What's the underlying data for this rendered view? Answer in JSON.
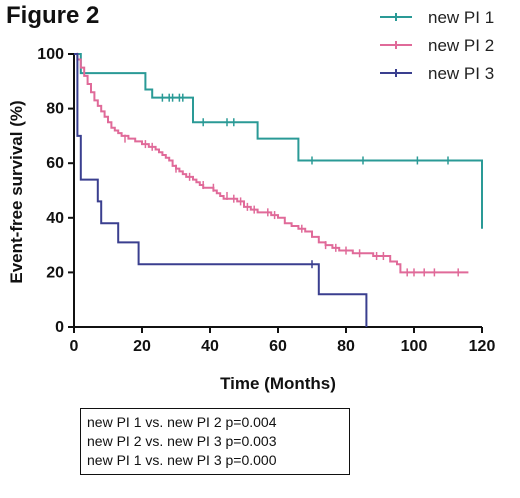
{
  "figure_title": "Figure 2",
  "chart_data": {
    "type": "line",
    "subtype": "kaplan-meier",
    "xlabel": "Time (Months)",
    "ylabel": "Event-free survival (%)",
    "xlim": [
      0,
      120
    ],
    "ylim": [
      0,
      100
    ],
    "xticks": [
      0,
      20,
      40,
      60,
      80,
      100,
      120
    ],
    "yticks": [
      0,
      20,
      40,
      60,
      80,
      100
    ],
    "grid": false,
    "legend_position": "top-right",
    "series": [
      {
        "name": "new PI 1",
        "color": "#2a9a96",
        "steps": [
          [
            0,
            100
          ],
          [
            2,
            93
          ],
          [
            19,
            93
          ],
          [
            21,
            87
          ],
          [
            23,
            84
          ],
          [
            33,
            84
          ],
          [
            35,
            75
          ],
          [
            52,
            75
          ],
          [
            54,
            69
          ],
          [
            65,
            69
          ],
          [
            66,
            61
          ],
          [
            120,
            61
          ],
          [
            120,
            36
          ]
        ],
        "censored": [
          [
            26,
            84
          ],
          [
            28,
            84
          ],
          [
            29,
            84
          ],
          [
            31,
            84
          ],
          [
            32,
            84
          ],
          [
            38,
            75
          ],
          [
            45,
            75
          ],
          [
            47,
            75
          ],
          [
            70,
            61
          ],
          [
            85,
            61
          ],
          [
            101,
            61
          ],
          [
            110,
            61
          ]
        ]
      },
      {
        "name": "new PI 2",
        "color": "#e06a99",
        "steps": [
          [
            0,
            100
          ],
          [
            1,
            98
          ],
          [
            2,
            95
          ],
          [
            3,
            92
          ],
          [
            4,
            89
          ],
          [
            5,
            86
          ],
          [
            6,
            83
          ],
          [
            7,
            81
          ],
          [
            8,
            79
          ],
          [
            9,
            77
          ],
          [
            10,
            75
          ],
          [
            11,
            73
          ],
          [
            12,
            72
          ],
          [
            13,
            71
          ],
          [
            14,
            70
          ],
          [
            16,
            69
          ],
          [
            18,
            68
          ],
          [
            20,
            67
          ],
          [
            22,
            66
          ],
          [
            24,
            65
          ],
          [
            25,
            64
          ],
          [
            26,
            63
          ],
          [
            27,
            62
          ],
          [
            28,
            61
          ],
          [
            29,
            59
          ],
          [
            30,
            58
          ],
          [
            31,
            57
          ],
          [
            32,
            56
          ],
          [
            33,
            55
          ],
          [
            35,
            54
          ],
          [
            36,
            53
          ],
          [
            37,
            52
          ],
          [
            38,
            51
          ],
          [
            40,
            51
          ],
          [
            41,
            50
          ],
          [
            42,
            49
          ],
          [
            43,
            48
          ],
          [
            44,
            47
          ],
          [
            46,
            47
          ],
          [
            48,
            46
          ],
          [
            50,
            44
          ],
          [
            52,
            43
          ],
          [
            54,
            42
          ],
          [
            56,
            42
          ],
          [
            58,
            41
          ],
          [
            60,
            40
          ],
          [
            62,
            38
          ],
          [
            64,
            37
          ],
          [
            66,
            36
          ],
          [
            68,
            35
          ],
          [
            70,
            33
          ],
          [
            72,
            31
          ],
          [
            74,
            30
          ],
          [
            76,
            29
          ],
          [
            78,
            28
          ],
          [
            80,
            28
          ],
          [
            82,
            27
          ],
          [
            86,
            27
          ],
          [
            88,
            26
          ],
          [
            92,
            26
          ],
          [
            93,
            24
          ],
          [
            95,
            23
          ],
          [
            96,
            20
          ],
          [
            116,
            20
          ]
        ],
        "censored": [
          [
            1,
            99
          ],
          [
            15,
            69
          ],
          [
            21,
            67
          ],
          [
            23,
            66
          ],
          [
            30,
            58
          ],
          [
            34,
            55
          ],
          [
            38,
            52
          ],
          [
            41,
            51
          ],
          [
            45,
            48
          ],
          [
            47,
            47
          ],
          [
            49,
            46
          ],
          [
            51,
            44
          ],
          [
            53,
            43
          ],
          [
            57,
            42
          ],
          [
            59,
            41
          ],
          [
            67,
            36
          ],
          [
            74,
            30
          ],
          [
            77,
            29
          ],
          [
            80,
            28
          ],
          [
            84,
            27
          ],
          [
            89,
            26
          ],
          [
            91,
            26
          ],
          [
            98,
            20
          ],
          [
            100,
            20
          ],
          [
            103,
            20
          ],
          [
            106,
            20
          ],
          [
            113,
            20
          ]
        ]
      },
      {
        "name": "new PI 3",
        "color": "#3a3f8f",
        "steps": [
          [
            0,
            100
          ],
          [
            1,
            70
          ],
          [
            2,
            54
          ],
          [
            6,
            54
          ],
          [
            7,
            46
          ],
          [
            8,
            38
          ],
          [
            12,
            38
          ],
          [
            13,
            31
          ],
          [
            18,
            31
          ],
          [
            19,
            23
          ],
          [
            72,
            23
          ],
          [
            72,
            12
          ],
          [
            86,
            12
          ],
          [
            86,
            0
          ]
        ],
        "censored": [
          [
            70,
            23
          ]
        ]
      }
    ],
    "annotations": [
      "new PI 1 vs. new PI 2 p=0.004",
      "new PI 2 vs. new PI 3 p=0.003",
      "new PI 1 vs. new PI 3 p=0.000"
    ]
  }
}
